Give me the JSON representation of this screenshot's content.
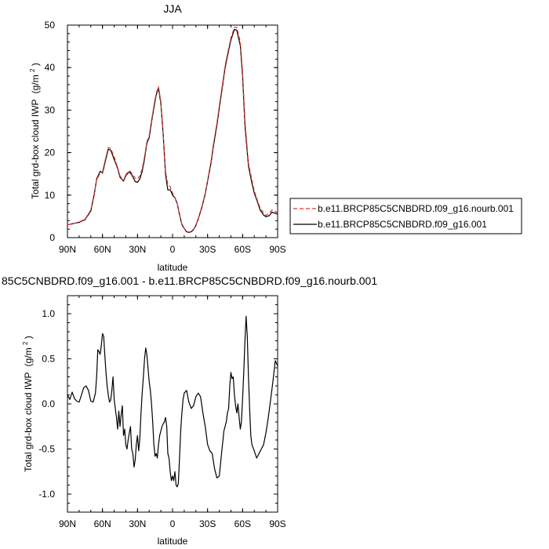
{
  "chart_data": [
    {
      "type": "line",
      "title": "JJA",
      "xlabel": "latitude",
      "ylabel": "Total grd-box cloud IWP",
      "ylabel_unit": "(g/m",
      "ylabel_unit_exp": "2",
      "ylabel_unit_close": ")",
      "xlim": [
        90,
        -90
      ],
      "ylim": [
        0,
        50
      ],
      "xticks": [
        {
          "value": 90,
          "label": "90N"
        },
        {
          "value": 60,
          "label": "60N"
        },
        {
          "value": 30,
          "label": "30N"
        },
        {
          "value": 0,
          "label": "0"
        },
        {
          "value": -30,
          "label": "30S"
        },
        {
          "value": -60,
          "label": "60S"
        },
        {
          "value": -90,
          "label": "90S"
        }
      ],
      "yticks": [
        {
          "value": 0,
          "label": "0"
        },
        {
          "value": 10,
          "label": "10"
        },
        {
          "value": 20,
          "label": "20"
        },
        {
          "value": 30,
          "label": "30"
        },
        {
          "value": 40,
          "label": "40"
        },
        {
          "value": 50,
          "label": "50"
        }
      ],
      "legend_position": "right",
      "series": [
        {
          "name": "b.e11.BRCP85C5CNBDRD.f09_g16.nourb.001",
          "color": "#e8302a",
          "dash": "dashed",
          "x": [
            90,
            85,
            80,
            75,
            70,
            67,
            65,
            62,
            60,
            57,
            55,
            53,
            50,
            47,
            45,
            42,
            40,
            37,
            35,
            32,
            30,
            28,
            26,
            24,
            22,
            20,
            18,
            16,
            14,
            12,
            10,
            8,
            6,
            4,
            2,
            0,
            -2,
            -4,
            -6,
            -8,
            -10,
            -12,
            -14,
            -16,
            -18,
            -20,
            -22,
            -25,
            -28,
            -30,
            -33,
            -35,
            -38,
            -40,
            -43,
            -45,
            -48,
            -50,
            -53,
            -55,
            -58,
            -60,
            -62,
            -65,
            -68,
            -70,
            -73,
            -75,
            -78,
            -80,
            -83,
            -85,
            -88,
            -90
          ],
          "values": [
            3,
            3.3,
            3.7,
            4.3,
            6.5,
            10.5,
            13.5,
            15.2,
            15.5,
            19,
            21.2,
            21,
            19,
            16.5,
            14.5,
            13.5,
            14.8,
            15.8,
            15.2,
            14,
            13.8,
            14.5,
            16.2,
            19,
            22.5,
            24,
            27.5,
            31,
            34,
            35.5,
            32,
            24.5,
            15.5,
            12.5,
            12,
            10.5,
            9.5,
            8,
            5.5,
            3.2,
            2.2,
            1.5,
            1.3,
            1.5,
            2,
            3,
            4.5,
            7.2,
            10.5,
            13.5,
            18,
            22,
            27,
            31,
            36.5,
            40.5,
            44.5,
            47,
            49.5,
            49.5,
            46,
            39,
            27.5,
            17.5,
            13.5,
            11,
            8.5,
            7,
            5.8,
            5.2,
            5.8,
            6.5,
            6.2,
            5.8
          ]
        },
        {
          "name": "b.e11.BRCP85C5CNBDRD.f09_g16.001",
          "color": "#000000",
          "dash": "solid",
          "x": [
            90,
            85,
            80,
            75,
            70,
            67,
            65,
            62,
            60,
            57,
            55,
            53,
            50,
            47,
            45,
            42,
            40,
            37,
            35,
            32,
            30,
            28,
            26,
            24,
            22,
            20,
            18,
            16,
            14,
            12,
            10,
            8,
            6,
            4,
            2,
            0,
            -2,
            -4,
            -6,
            -8,
            -10,
            -12,
            -14,
            -16,
            -18,
            -20,
            -22,
            -25,
            -28,
            -30,
            -33,
            -35,
            -38,
            -40,
            -43,
            -45,
            -48,
            -50,
            -53,
            -55,
            -58,
            -60,
            -62,
            -65,
            -68,
            -70,
            -73,
            -75,
            -78,
            -80,
            -83,
            -85,
            -88,
            -90
          ],
          "values": [
            3,
            3.3,
            3.6,
            4.2,
            6.3,
            10.2,
            13.8,
            15.6,
            15.2,
            18.6,
            20.8,
            20.6,
            18.4,
            16.3,
            14.2,
            13.3,
            14.6,
            15.5,
            14.8,
            13.2,
            13,
            13.8,
            15.6,
            18.5,
            22.2,
            23.5,
            27.2,
            30.5,
            33.6,
            35.2,
            31.5,
            24.2,
            14.8,
            11.2,
            11.3,
            10,
            9.4,
            8,
            5.4,
            3.1,
            2.1,
            1.4,
            1.2,
            1.4,
            1.9,
            2.9,
            4.4,
            7,
            10.3,
            13.3,
            17.6,
            21.5,
            26.5,
            30.5,
            36,
            40,
            44,
            46.5,
            49,
            48.8,
            45.2,
            38,
            26.5,
            16.8,
            12.8,
            10.5,
            8.2,
            6.5,
            5.3,
            4.9,
            5.2,
            6,
            5.7,
            5.5
          ]
        }
      ]
    },
    {
      "type": "line",
      "title": "85C5CNBDRD.f09_g16.001 - b.e11.BRCP85C5CNBDRD.f09_g16.nourb.001",
      "xlabel": "latitude",
      "ylabel": "Total grd-box cloud IWP",
      "ylabel_unit": "(g/m",
      "ylabel_unit_exp": "2",
      "ylabel_unit_close": ")",
      "xlim": [
        90,
        -90
      ],
      "ylim": [
        -1.2,
        1.2
      ],
      "xticks": [
        {
          "value": 90,
          "label": "90N"
        },
        {
          "value": 60,
          "label": "60N"
        },
        {
          "value": 30,
          "label": "30N"
        },
        {
          "value": 0,
          "label": "0"
        },
        {
          "value": -30,
          "label": "30S"
        },
        {
          "value": -60,
          "label": "60S"
        },
        {
          "value": -90,
          "label": "90S"
        }
      ],
      "yticks": [
        {
          "value": -1.0,
          "label": "-1.0"
        },
        {
          "value": -0.5,
          "label": "-0.5"
        },
        {
          "value": 0.0,
          "label": "0.0"
        },
        {
          "value": 0.5,
          "label": "0.5"
        },
        {
          "value": 1.0,
          "label": "1.0"
        }
      ],
      "series": [
        {
          "color": "#000000",
          "dash": "solid",
          "x": [
            90,
            88,
            86,
            84,
            82,
            80,
            78,
            76,
            74,
            72,
            70,
            68,
            66,
            65,
            64,
            63,
            62,
            61,
            60,
            59,
            58,
            57,
            56,
            55,
            54,
            53,
            52,
            51,
            50,
            49,
            48,
            47,
            46,
            45,
            44,
            43,
            42,
            41,
            40,
            39,
            38,
            37,
            36,
            35,
            34,
            33,
            32,
            31,
            30,
            29,
            28,
            27,
            26,
            25,
            24,
            23,
            22,
            21,
            20,
            19,
            18,
            17,
            16,
            15,
            14,
            13,
            12,
            11,
            10,
            9,
            8,
            7,
            6,
            5,
            4,
            3,
            2,
            1,
            0,
            -1,
            -2,
            -3,
            -4,
            -5,
            -6,
            -7,
            -8,
            -9,
            -10,
            -12,
            -14,
            -16,
            -18,
            -20,
            -22,
            -24,
            -26,
            -28,
            -30,
            -32,
            -34,
            -36,
            -38,
            -40,
            -42,
            -44,
            -46,
            -47,
            -48,
            -49,
            -50,
            -51,
            -52,
            -53,
            -54,
            -55,
            -56,
            -57,
            -58,
            -59,
            -60,
            -61,
            -62,
            -63,
            -64,
            -65,
            -66,
            -67,
            -68,
            -70,
            -72,
            -74,
            -76,
            -78,
            -80,
            -82,
            -84,
            -86,
            -88,
            -90
          ],
          "values": [
            0.1,
            0.05,
            0.13,
            0.06,
            0.03,
            0.02,
            0.1,
            0.18,
            0.2,
            0.15,
            0.03,
            0.02,
            0.12,
            0.3,
            0.6,
            0.58,
            0.55,
            0.65,
            0.78,
            0.75,
            0.55,
            0.35,
            0.2,
            0.1,
            0.02,
            0.04,
            0.15,
            0.3,
            0.05,
            -0.05,
            -0.15,
            -0.28,
            -0.08,
            -0.25,
            -0.12,
            -0.02,
            -0.35,
            -0.28,
            -0.45,
            -0.5,
            -0.4,
            -0.32,
            -0.25,
            -0.5,
            -0.55,
            -0.7,
            -0.62,
            -0.45,
            -0.35,
            -0.52,
            -0.38,
            -0.1,
            0.12,
            0.3,
            0.5,
            0.62,
            0.55,
            0.4,
            0.25,
            0.15,
            0.0,
            -0.2,
            -0.45,
            -0.58,
            -0.55,
            -0.6,
            -0.45,
            -0.35,
            -0.3,
            -0.25,
            -0.22,
            -0.2,
            -0.15,
            -0.25,
            -0.55,
            -0.6,
            -0.75,
            -0.85,
            -0.8,
            -0.85,
            -0.75,
            -0.9,
            -0.92,
            -0.88,
            -0.6,
            -0.3,
            -0.1,
            0.05,
            0.12,
            0.15,
            0.02,
            -0.05,
            -0.02,
            0.08,
            0.12,
            0.08,
            -0.1,
            -0.25,
            -0.45,
            -0.52,
            -0.55,
            -0.72,
            -0.82,
            -0.8,
            -0.55,
            -0.3,
            -0.2,
            -0.1,
            -0.05,
            0.2,
            0.35,
            0.28,
            0.3,
            0.1,
            -0.02,
            -0.1,
            0.0,
            -0.15,
            -0.28,
            -0.2,
            0.05,
            0.35,
            0.7,
            0.97,
            0.75,
            0.3,
            -0.05,
            -0.35,
            -0.45,
            -0.52,
            -0.6,
            -0.55,
            -0.5,
            -0.45,
            -0.32,
            -0.15,
            0.05,
            0.25,
            0.48,
            0.42
          ]
        }
      ]
    }
  ]
}
